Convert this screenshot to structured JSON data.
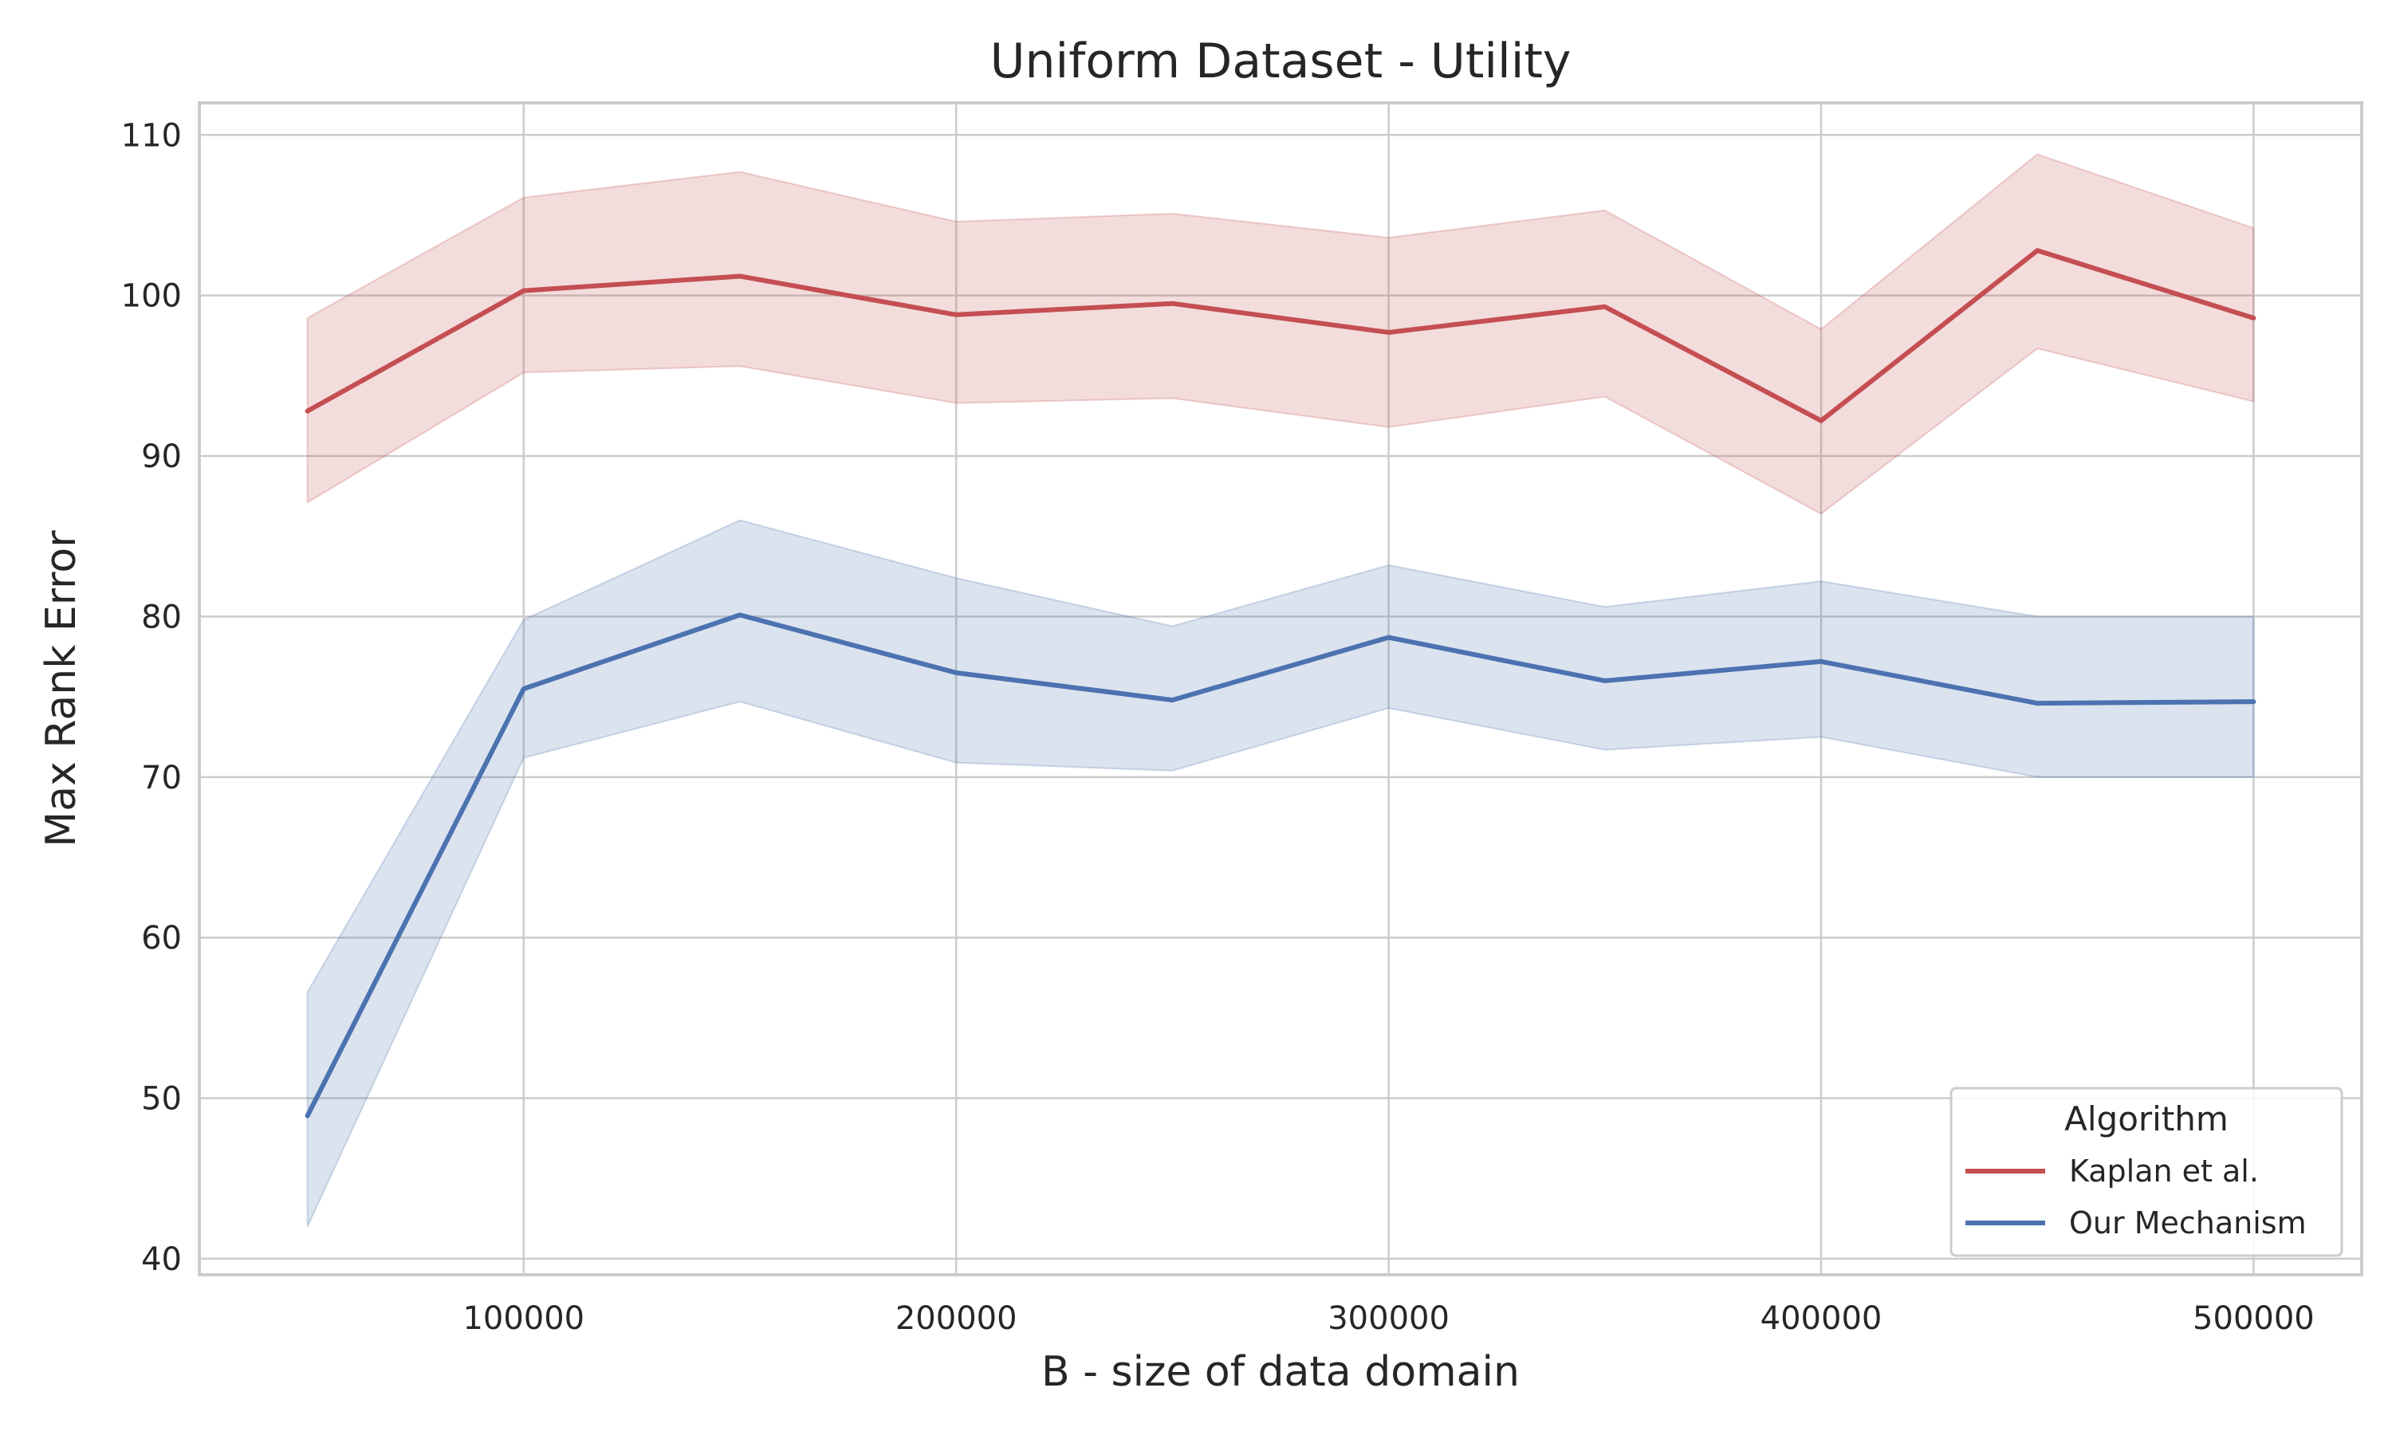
{
  "chart_data": {
    "type": "line",
    "title": "Uniform Dataset - Utility",
    "xlabel": "B - size of data domain",
    "ylabel": "Max Rank Error",
    "x": [
      50000,
      100000,
      150000,
      200000,
      250000,
      300000,
      350000,
      400000,
      450000,
      500000
    ],
    "xlim": [
      25000,
      525000
    ],
    "ylim": [
      39,
      112
    ],
    "x_ticks": [
      100000,
      200000,
      300000,
      400000,
      500000
    ],
    "y_ticks": [
      40,
      50,
      60,
      70,
      80,
      90,
      100,
      110
    ],
    "grid": true,
    "legend": {
      "title": "Algorithm",
      "position": "bottom-right"
    },
    "series": [
      {
        "name": "Kaplan et al.",
        "color": "#c44e52",
        "values": [
          92.8,
          100.3,
          101.2,
          98.8,
          99.5,
          97.7,
          99.3,
          92.2,
          102.8,
          98.6
        ],
        "ci_lower": [
          87.1,
          95.2,
          95.6,
          93.3,
          93.6,
          91.8,
          93.7,
          86.4,
          96.7,
          93.4
        ],
        "ci_upper": [
          98.6,
          106.1,
          107.7,
          104.6,
          105.1,
          103.6,
          105.3,
          97.9,
          108.8,
          104.2
        ]
      },
      {
        "name": "Our Mechanism",
        "color": "#4c72b0",
        "values": [
          48.9,
          75.5,
          80.1,
          76.5,
          74.8,
          78.7,
          76.0,
          77.2,
          74.6,
          74.7
        ],
        "ci_lower": [
          42.0,
          71.2,
          74.7,
          70.9,
          70.4,
          74.3,
          71.7,
          72.5,
          70.0,
          70.0
        ],
        "ci_upper": [
          56.6,
          79.8,
          86.0,
          82.4,
          79.4,
          83.2,
          80.6,
          82.2,
          80.0,
          80.0
        ]
      }
    ]
  }
}
